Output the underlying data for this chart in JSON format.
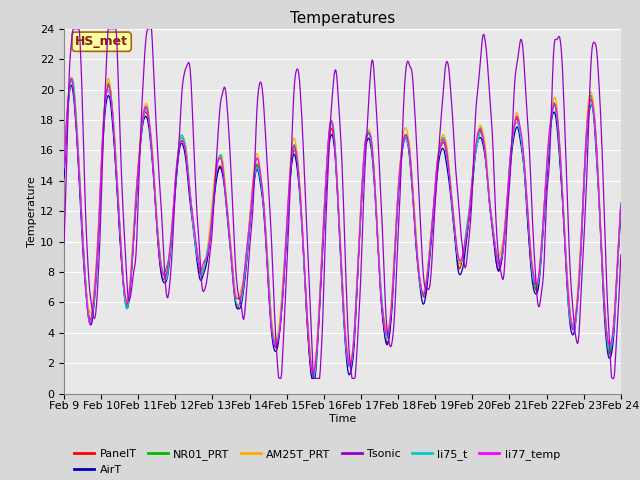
{
  "title": "Temperatures",
  "xlabel": "Time",
  "ylabel": "Temperature",
  "xlim_start": 9,
  "xlim_end": 24,
  "ylim": [
    0,
    24
  ],
  "yticks": [
    0,
    2,
    4,
    6,
    8,
    10,
    12,
    14,
    16,
    18,
    20,
    22,
    24
  ],
  "xtick_labels": [
    "Feb 9",
    "Feb 10",
    "Feb 11",
    "Feb 12",
    "Feb 13",
    "Feb 14",
    "Feb 15",
    "Feb 16",
    "Feb 17",
    "Feb 18",
    "Feb 19",
    "Feb 20",
    "Feb 21",
    "Feb 22",
    "Feb 23",
    "Feb 24"
  ],
  "legend_labels": [
    "PanelT",
    "AirT",
    "NR01_PRT",
    "AM25T_PRT",
    "Tsonic",
    "li75_t",
    "li77_temp"
  ],
  "legend_colors": [
    "#ff0000",
    "#0000bb",
    "#00bb00",
    "#ffaa00",
    "#9900cc",
    "#00cccc",
    "#ff00ff"
  ],
  "annotation_text": "HS_met",
  "annotation_fg": "#882200",
  "annotation_bg": "#ffffaa",
  "annotation_border": "#aa6600",
  "bg_color": "#e8e8e8",
  "fig_bg_color": "#d8d8d8",
  "title_fontsize": 11,
  "axis_fontsize": 8,
  "legend_fontsize": 8,
  "line_width": 0.9
}
